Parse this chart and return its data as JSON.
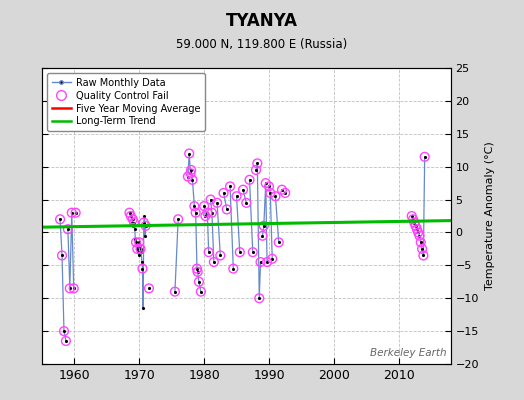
{
  "title": "TYANYA",
  "subtitle": "59.000 N, 119.800 E (Russia)",
  "ylabel_right": "Temperature Anomaly (°C)",
  "watermark": "Berkeley Earth",
  "xlim": [
    1955,
    2018
  ],
  "ylim": [
    -20,
    25
  ],
  "yticks": [
    -20,
    -15,
    -10,
    -5,
    0,
    5,
    10,
    15,
    20,
    25
  ],
  "xticks": [
    1960,
    1970,
    1980,
    1990,
    2000,
    2010
  ],
  "bg_color": "#d8d8d8",
  "plot_bg": "#ffffff",
  "grid_color": "#c0c0c0",
  "raw_line_color": "#6688cc",
  "raw_dot_color": "#000000",
  "qc_fail_color": "#ff44ff",
  "moving_avg_color": "#ff0000",
  "trend_color": "#00bb00",
  "trend_line": [
    [
      1955,
      0.8
    ],
    [
      2018,
      1.8
    ]
  ],
  "raw_segments": [
    [
      [
        1957.8,
        2.0
      ],
      [
        1958.1,
        -3.5
      ],
      [
        1958.4,
        -15.0
      ],
      [
        1958.7,
        -16.5
      ]
    ],
    [
      [
        1959.0,
        0.5
      ],
      [
        1959.3,
        -8.5
      ],
      [
        1959.6,
        3.0
      ],
      [
        1959.9,
        -8.5
      ]
    ],
    [
      [
        1960.2,
        3.0
      ]
    ],
    [
      [
        1968.5,
        3.0
      ],
      [
        1968.7,
        2.5
      ],
      [
        1968.9,
        1.5
      ],
      [
        1969.0,
        2.0
      ],
      [
        1969.1,
        1.0
      ],
      [
        1969.2,
        1.5
      ],
      [
        1969.3,
        0.5
      ],
      [
        1969.4,
        -1.0
      ],
      [
        1969.5,
        -1.5
      ],
      [
        1969.6,
        -2.0
      ],
      [
        1969.7,
        -2.5
      ],
      [
        1969.8,
        -3.0
      ],
      [
        1969.9,
        -3.5
      ],
      [
        1970.0,
        -1.5
      ],
      [
        1970.1,
        -2.0
      ],
      [
        1970.2,
        -2.5
      ],
      [
        1970.3,
        -3.0
      ],
      [
        1970.4,
        -4.5
      ],
      [
        1970.5,
        -5.5
      ],
      [
        1970.6,
        -11.5
      ],
      [
        1970.7,
        1.5
      ],
      [
        1970.8,
        2.5
      ],
      [
        1970.9,
        -0.5
      ],
      [
        1971.0,
        1.0
      ]
    ],
    [
      [
        1971.5,
        -8.5
      ]
    ],
    [
      [
        1975.5,
        -9.0
      ],
      [
        1976.0,
        2.0
      ]
    ],
    [
      [
        1977.5,
        8.5
      ],
      [
        1977.7,
        12.0
      ],
      [
        1977.9,
        9.0
      ],
      [
        1978.0,
        9.5
      ],
      [
        1978.2,
        8.0
      ],
      [
        1978.5,
        4.0
      ],
      [
        1978.7,
        3.0
      ],
      [
        1978.9,
        -5.5
      ],
      [
        1979.0,
        -6.0
      ],
      [
        1979.2,
        -7.5
      ],
      [
        1979.5,
        -9.0
      ]
    ],
    [
      [
        1980.0,
        4.0
      ],
      [
        1980.2,
        2.5
      ],
      [
        1980.5,
        3.0
      ],
      [
        1980.7,
        -3.0
      ]
    ],
    [
      [
        1981.0,
        5.0
      ],
      [
        1981.2,
        3.0
      ],
      [
        1981.5,
        -4.5
      ]
    ],
    [
      [
        1982.0,
        4.5
      ],
      [
        1982.5,
        -3.5
      ]
    ],
    [
      [
        1983.0,
        6.0
      ],
      [
        1983.5,
        3.5
      ]
    ],
    [
      [
        1984.0,
        7.0
      ],
      [
        1984.5,
        -5.5
      ]
    ],
    [
      [
        1985.0,
        5.5
      ],
      [
        1985.5,
        -3.0
      ]
    ],
    [
      [
        1986.0,
        6.5
      ],
      [
        1986.5,
        4.5
      ]
    ],
    [
      [
        1987.0,
        8.0
      ],
      [
        1987.5,
        -3.0
      ]
    ],
    [
      [
        1988.0,
        9.5
      ],
      [
        1988.2,
        10.5
      ],
      [
        1988.5,
        -10.0
      ],
      [
        1988.7,
        -4.5
      ]
    ],
    [
      [
        1989.0,
        -0.5
      ],
      [
        1989.2,
        1.0
      ],
      [
        1989.5,
        7.5
      ],
      [
        1989.7,
        -4.5
      ]
    ],
    [
      [
        1990.0,
        7.0
      ],
      [
        1990.2,
        6.0
      ],
      [
        1990.5,
        -4.0
      ]
    ],
    [
      [
        1991.0,
        5.5
      ],
      [
        1991.5,
        -1.5
      ]
    ],
    [
      [
        1992.0,
        6.5
      ],
      [
        1992.5,
        6.0
      ]
    ],
    [
      [
        2012.0,
        2.5
      ],
      [
        2012.2,
        2.0
      ],
      [
        2012.4,
        1.5
      ],
      [
        2012.6,
        1.0
      ],
      [
        2012.8,
        0.5
      ],
      [
        2013.0,
        0.0
      ],
      [
        2013.2,
        -0.5
      ],
      [
        2013.4,
        -1.5
      ],
      [
        2013.6,
        -2.5
      ],
      [
        2013.8,
        -3.5
      ],
      [
        2014.0,
        11.5
      ]
    ]
  ],
  "qc_fail_points": [
    [
      1957.8,
      2.0
    ],
    [
      1958.1,
      -3.5
    ],
    [
      1958.4,
      -15.0
    ],
    [
      1958.7,
      -16.5
    ],
    [
      1959.0,
      0.5
    ],
    [
      1959.3,
      -8.5
    ],
    [
      1959.6,
      3.0
    ],
    [
      1959.9,
      -8.5
    ],
    [
      1960.2,
      3.0
    ],
    [
      1968.5,
      3.0
    ],
    [
      1968.7,
      2.5
    ],
    [
      1969.0,
      2.0
    ],
    [
      1969.2,
      1.5
    ],
    [
      1969.5,
      -1.5
    ],
    [
      1969.7,
      -2.5
    ],
    [
      1970.0,
      -1.5
    ],
    [
      1970.2,
      -2.5
    ],
    [
      1970.5,
      -5.5
    ],
    [
      1970.7,
      1.5
    ],
    [
      1971.0,
      1.0
    ],
    [
      1971.5,
      -8.5
    ],
    [
      1975.5,
      -9.0
    ],
    [
      1976.0,
      2.0
    ],
    [
      1977.5,
      8.5
    ],
    [
      1977.7,
      12.0
    ],
    [
      1977.9,
      9.0
    ],
    [
      1978.0,
      9.5
    ],
    [
      1978.2,
      8.0
    ],
    [
      1978.5,
      4.0
    ],
    [
      1978.7,
      3.0
    ],
    [
      1978.9,
      -5.5
    ],
    [
      1979.0,
      -6.0
    ],
    [
      1979.2,
      -7.5
    ],
    [
      1979.5,
      -9.0
    ],
    [
      1980.0,
      4.0
    ],
    [
      1980.2,
      2.5
    ],
    [
      1980.5,
      3.0
    ],
    [
      1980.7,
      -3.0
    ],
    [
      1981.0,
      5.0
    ],
    [
      1981.2,
      3.0
    ],
    [
      1981.5,
      -4.5
    ],
    [
      1982.0,
      4.5
    ],
    [
      1982.5,
      -3.5
    ],
    [
      1983.0,
      6.0
    ],
    [
      1983.5,
      3.5
    ],
    [
      1984.0,
      7.0
    ],
    [
      1984.5,
      -5.5
    ],
    [
      1985.0,
      5.5
    ],
    [
      1985.5,
      -3.0
    ],
    [
      1986.0,
      6.5
    ],
    [
      1986.5,
      4.5
    ],
    [
      1987.0,
      8.0
    ],
    [
      1987.5,
      -3.0
    ],
    [
      1988.0,
      9.5
    ],
    [
      1988.2,
      10.5
    ],
    [
      1988.5,
      -10.0
    ],
    [
      1988.7,
      -4.5
    ],
    [
      1989.0,
      -0.5
    ],
    [
      1989.2,
      1.0
    ],
    [
      1989.5,
      7.5
    ],
    [
      1989.7,
      -4.5
    ],
    [
      1990.0,
      7.0
    ],
    [
      1990.2,
      6.0
    ],
    [
      1990.5,
      -4.0
    ],
    [
      1991.0,
      5.5
    ],
    [
      1991.5,
      -1.5
    ],
    [
      1992.0,
      6.5
    ],
    [
      1992.5,
      6.0
    ],
    [
      2012.0,
      2.5
    ],
    [
      2012.2,
      2.0
    ],
    [
      2012.4,
      1.5
    ],
    [
      2012.6,
      1.0
    ],
    [
      2012.8,
      0.5
    ],
    [
      2013.0,
      0.0
    ],
    [
      2013.2,
      -0.5
    ],
    [
      2013.4,
      -1.5
    ],
    [
      2013.6,
      -2.5
    ],
    [
      2013.8,
      -3.5
    ],
    [
      2014.0,
      11.5
    ]
  ]
}
